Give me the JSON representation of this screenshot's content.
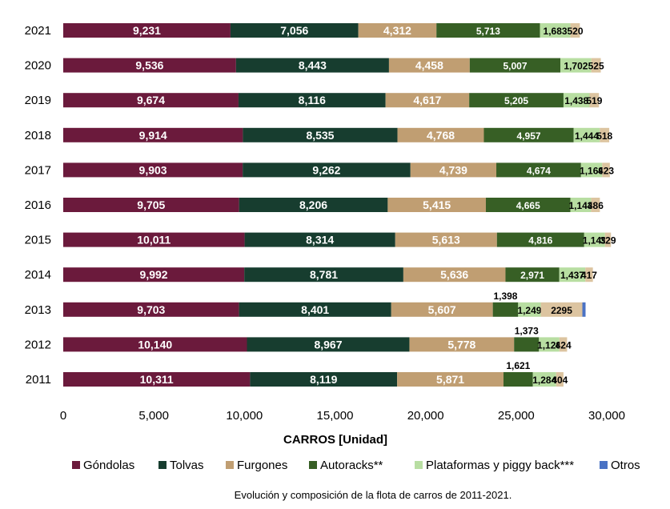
{
  "chart_data": {
    "type": "bar",
    "orientation": "horizontal",
    "stacked": true,
    "categories": [
      "2021",
      "2020",
      "2019",
      "2018",
      "2017",
      "2016",
      "2015",
      "2014",
      "2013",
      "2012",
      "2011"
    ],
    "series": [
      {
        "name": "Góndolas",
        "color": "#6b1a3c",
        "values": [
          9231,
          9536,
          9674,
          9914,
          9903,
          9705,
          10011,
          9992,
          9703,
          10140,
          10311
        ]
      },
      {
        "name": "Tolvas",
        "color": "#173d2f",
        "values": [
          7056,
          8443,
          8116,
          8535,
          9262,
          8206,
          8314,
          8781,
          8401,
          8967,
          8119
        ]
      },
      {
        "name": "Furgones",
        "color": "#c09e72",
        "values": [
          4312,
          4458,
          4617,
          4768,
          4739,
          5415,
          5613,
          5636,
          5607,
          5778,
          5871
        ]
      },
      {
        "name": "Autoracks**",
        "color": "#375f25",
        "values": [
          5713,
          5007,
          5205,
          4957,
          4674,
          4665,
          4816,
          2971,
          1398,
          1373,
          1621
        ]
      },
      {
        "name": "Plataformas y piggy back***",
        "color": "#b8dea2",
        "values": [
          1683,
          1702,
          1438,
          1444,
          1169,
          1143,
          1149,
          1437,
          1249,
          1128,
          1284
        ]
      },
      {
        "name": "Otros",
        "color": "#4a72c4",
        "values": [
          0,
          0,
          0,
          0,
          0,
          0,
          0,
          0,
          0,
          0,
          0
        ]
      }
    ],
    "remainder": {
      "color": "#dcc4a0",
      "values": [
        520,
        525,
        519,
        518,
        423,
        486,
        329,
        417,
        2295,
        424,
        404
      ],
      "labels": [
        "520",
        "525",
        "519",
        "518",
        "423",
        "486",
        "329",
        "417",
        "2295",
        "424",
        "404"
      ]
    },
    "otros_marker_year": "2013",
    "value_labels": [
      [
        "9,231",
        "7,056",
        "4,312",
        "5,713",
        "1,683"
      ],
      [
        "9,536",
        "8,443",
        "4,458",
        "5,007",
        "1,702"
      ],
      [
        "9,674",
        "8,116",
        "4,617",
        "5,205",
        "1,438"
      ],
      [
        "9,914",
        "8,535",
        "4,768",
        "4,957",
        "1,444"
      ],
      [
        "9,903",
        "9,262",
        "4,739",
        "4,674",
        "1,169"
      ],
      [
        "9,705",
        "8,206",
        "5,415",
        "4,665",
        "1,143"
      ],
      [
        "10,011",
        "8,314",
        "5,613",
        "4,816",
        "1,149"
      ],
      [
        "9,992",
        "8,781",
        "5,636",
        "2,971",
        "1,437"
      ],
      [
        "9,703",
        "8,401",
        "5,607",
        "1,398",
        "1,249"
      ],
      [
        "10,140",
        "8,967",
        "5,778",
        "1,373",
        "1,128"
      ],
      [
        "10,311",
        "8,119",
        "5,871",
        "1,621",
        "1,284"
      ]
    ],
    "xlim": [
      0,
      30000
    ],
    "xticks": [
      0,
      5000,
      10000,
      15000,
      20000,
      25000,
      30000
    ],
    "xtick_labels": [
      "0",
      "5,000",
      "10,000",
      "15,000",
      "20,000",
      "25,000",
      "30,000"
    ],
    "xlabel": "CARROS [Unidad]",
    "ylabel": "",
    "legend_position": "bottom",
    "grid": false
  },
  "caption": "Evolución y composición de la flota de carros de 2011-2021."
}
